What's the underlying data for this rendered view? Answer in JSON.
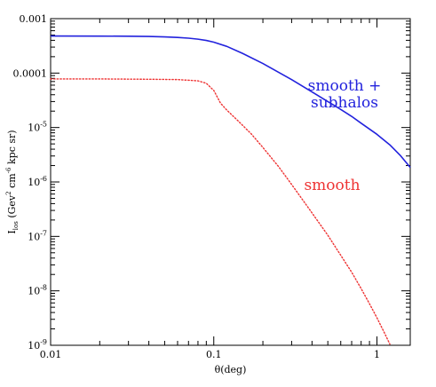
{
  "chart_data": {
    "type": "line",
    "xlabel": "θ(deg)",
    "ylabel": "I_los (GeV² cm⁻⁶ kpc sr)",
    "ylabel_parts": {
      "sym": "I",
      "sub": "los",
      "pre": "(Gev",
      "sup1": "2",
      "mid": " cm",
      "sup2": "-6",
      "post": " kpc sr)"
    },
    "xscale": "log",
    "yscale": "log",
    "xlim": [
      0.01,
      1.6
    ],
    "ylim": [
      1e-09,
      0.001
    ],
    "x_ticks": [
      {
        "value": 0.01,
        "label": "0.01"
      },
      {
        "value": 0.1,
        "label": "0.1"
      },
      {
        "value": 1,
        "label": "1"
      }
    ],
    "y_ticks": [
      {
        "value": 0.001,
        "label": "0.001",
        "kind": "plain"
      },
      {
        "value": 0.0001,
        "label": "0.0001",
        "kind": "plain"
      },
      {
        "value": 1e-05,
        "label": "10",
        "exp": "-5",
        "kind": "exp"
      },
      {
        "value": 1e-06,
        "label": "10",
        "exp": "-6",
        "kind": "exp"
      },
      {
        "value": 1e-07,
        "label": "10",
        "exp": "-7",
        "kind": "exp"
      },
      {
        "value": 1e-08,
        "label": "10",
        "exp": "-8",
        "kind": "exp"
      },
      {
        "value": 1e-09,
        "label": "10",
        "exp": "-9",
        "kind": "exp"
      }
    ],
    "series": [
      {
        "name": "smooth + subhalos",
        "label_lines": [
          "smooth +",
          "subhalos"
        ],
        "color": "#2222dd",
        "style": "solid",
        "points": [
          [
            0.01,
            0.00048
          ],
          [
            0.02,
            0.000478
          ],
          [
            0.03,
            0.000475
          ],
          [
            0.04,
            0.00047
          ],
          [
            0.05,
            0.000462
          ],
          [
            0.06,
            0.000452
          ],
          [
            0.07,
            0.000438
          ],
          [
            0.08,
            0.00042
          ],
          [
            0.09,
            0.000398
          ],
          [
            0.1,
            0.00037
          ],
          [
            0.12,
            0.00031
          ],
          [
            0.15,
            0.00023
          ],
          [
            0.2,
            0.00015
          ],
          [
            0.3,
            7.6e-05
          ],
          [
            0.4,
            4.5e-05
          ],
          [
            0.5,
            3e-05
          ],
          [
            0.6,
            2.15e-05
          ],
          [
            0.7,
            1.6e-05
          ],
          [
            0.8,
            1.2e-05
          ],
          [
            1.0,
            7.5e-06
          ],
          [
            1.2,
            4.8e-06
          ],
          [
            1.4,
            3e-06
          ],
          [
            1.6,
            1.85e-06
          ]
        ]
      },
      {
        "name": "smooth",
        "label_lines": [
          "smooth"
        ],
        "color": "#ee3333",
        "style": "dotted",
        "points": [
          [
            0.01,
            7.8e-05
          ],
          [
            0.02,
            7.8e-05
          ],
          [
            0.04,
            7.7e-05
          ],
          [
            0.06,
            7.6e-05
          ],
          [
            0.08,
            7.2e-05
          ],
          [
            0.09,
            6.5e-05
          ],
          [
            0.1,
            4.8e-05
          ],
          [
            0.11,
            2.8e-05
          ],
          [
            0.12,
            2.1e-05
          ],
          [
            0.14,
            1.35e-05
          ],
          [
            0.17,
            7.6e-06
          ],
          [
            0.2,
            4.3e-06
          ],
          [
            0.25,
            1.9e-06
          ],
          [
            0.3,
            9e-07
          ],
          [
            0.4,
            2.7e-07
          ],
          [
            0.5,
            1.05e-07
          ],
          [
            0.6,
            4.5e-08
          ],
          [
            0.7,
            2.2e-08
          ],
          [
            0.8,
            1.1e-08
          ],
          [
            0.9,
            5.8e-09
          ],
          [
            1.0,
            3.2e-09
          ],
          [
            1.1,
            1.8e-09
          ],
          [
            1.2,
            1.05e-09
          ]
        ]
      }
    ]
  }
}
